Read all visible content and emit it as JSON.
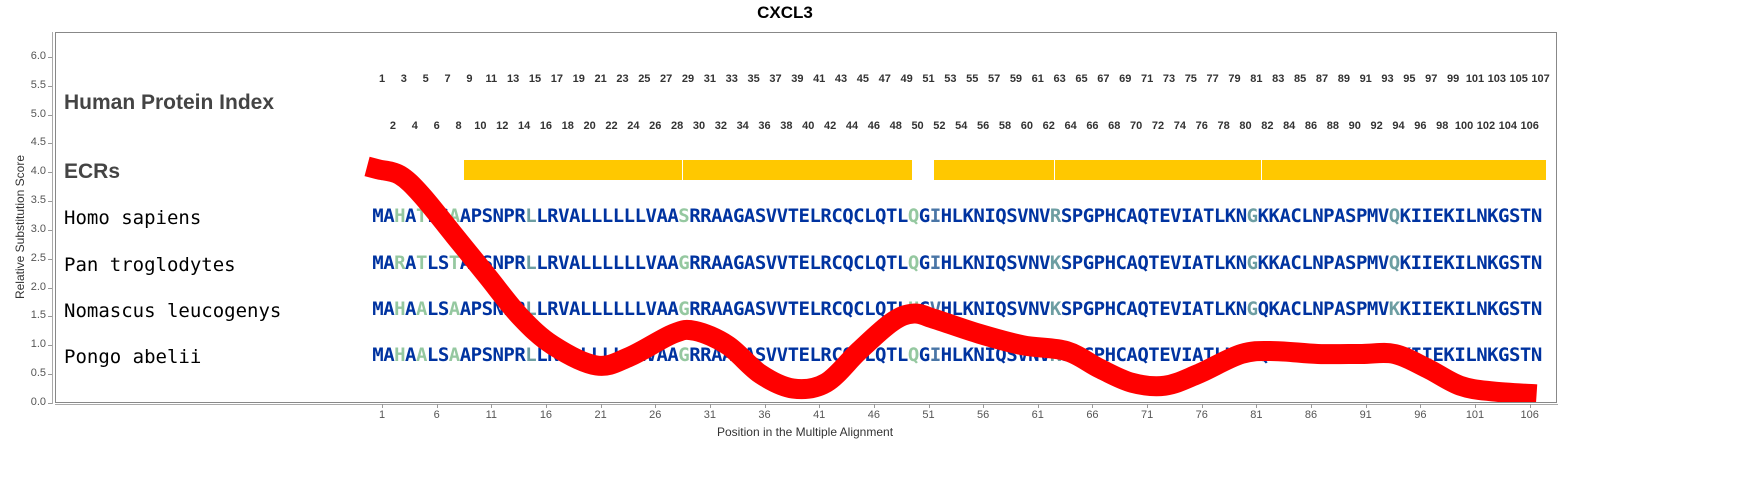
{
  "chart_data": {
    "type": "line",
    "title": "CXCL3",
    "xlabel": "Position in the Multiple Alignment",
    "ylabel": "Relative Substitution Score",
    "ylim": [
      0,
      6.0
    ],
    "xlim": [
      1,
      107
    ],
    "yticks": [
      "0.0",
      "0.5",
      "1.0",
      "1.5",
      "2.0",
      "2.5",
      "3.0",
      "3.5",
      "4.0",
      "4.5",
      "5.0",
      "5.5",
      "6.0"
    ],
    "xticks": [
      "1",
      "6",
      "11",
      "16",
      "21",
      "26",
      "31",
      "36",
      "41",
      "46",
      "51",
      "56",
      "61",
      "66",
      "71",
      "76",
      "81",
      "86",
      "91",
      "96",
      "101",
      "106"
    ],
    "series": [
      {
        "name": "Relative Substitution Score",
        "color": "#ff0000",
        "x": [
          0,
          1,
          3,
          5,
          8,
          11,
          14,
          17,
          21,
          24,
          28,
          30,
          33,
          36,
          39,
          42,
          45,
          48,
          50,
          52,
          56,
          60,
          64,
          67,
          70,
          73,
          76,
          80,
          83,
          87,
          91,
          94,
          97,
          100,
          103,
          107
        ],
        "y": [
          4.1,
          4.05,
          3.95,
          3.6,
          2.9,
          2.2,
          1.5,
          1.0,
          0.65,
          0.8,
          1.2,
          1.25,
          1.0,
          0.5,
          0.25,
          0.35,
          0.9,
          1.4,
          1.55,
          1.45,
          1.2,
          1.0,
          0.9,
          0.6,
          0.35,
          0.3,
          0.5,
          0.85,
          0.9,
          0.85,
          0.85,
          0.85,
          0.6,
          0.3,
          0.2,
          0.15
        ]
      }
    ],
    "grid": false
  },
  "labels": {
    "human_protein_index": "Human Protein Index",
    "ecrs": "ECRs"
  },
  "ecrs": {
    "color": "#ffc800",
    "ranges": [
      [
        9,
        28
      ],
      [
        29,
        49
      ],
      [
        52,
        62
      ],
      [
        63,
        81
      ],
      [
        82,
        93
      ],
      [
        94,
        107
      ]
    ]
  },
  "colors": {
    "conserved": "#0033a0",
    "light": "#95c8a0",
    "teal": "#6d9ea2",
    "steel": "#4a76a6"
  },
  "alignment": [
    {
      "species": "Homo sapiens",
      "sequence": "MAHATLSAAPSNPRLLRVALLLLLLVAASRRAAGASVVTELRCQCLQTLQGIHLKNIQSVNVRSPGPHCAQTEVIATLKNGKKACLNPASPMVQKIIEKILNKGSTN",
      "highlights": {
        "3": "light",
        "5": "light",
        "8": "light",
        "15": "teal",
        "29": "light",
        "50": "light",
        "52": "steel",
        "63": "teal",
        "81": "teal",
        "94": "teal"
      }
    },
    {
      "species": "Pan troglodytes",
      "sequence": "MARATLSTAPSNPRLLRVALLLLLLVAAGRRAAGASVVTELRCQCLQTLQGIHLKNIQSVNVKSPGPHCAQTEVIATLKNGKKACLNPASPMVQKIIEKILNKGSTN",
      "highlights": {
        "3": "light",
        "5": "light",
        "8": "light",
        "15": "teal",
        "29": "light",
        "50": "light",
        "52": "steel",
        "63": "teal",
        "81": "teal",
        "94": "teal"
      }
    },
    {
      "species": "Nomascus leucogenys",
      "sequence": "MAHAALSAAPSNPRLLRVALLLLLLVAAGRRAAGASVVTELRCQCLQTLHGVHLKNIQSVNVKSPGPHCAQTEVIATLKNGQKACLNPASPMVKKIIEKILNKGSTN",
      "highlights": {
        "3": "light",
        "5": "light",
        "8": "light",
        "15": "teal",
        "29": "light",
        "50": "light",
        "52": "steel",
        "63": "teal",
        "81": "teal",
        "94": "teal"
      }
    },
    {
      "species": "Pongo abelii",
      "sequence": "MAHAALSAAPSNPRLLRVALLLLLLVAAGRRAAGASVVTELRCQCLQTLQGIHLKNIQSVNVKSPGPHCAQTEVIATLKNGQKACLNPASPMVQKIIEKILNKGSTN",
      "highlights": {
        "3": "light",
        "5": "light",
        "8": "light",
        "15": "teal",
        "29": "light",
        "50": "light",
        "52": "steel",
        "63": "teal",
        "81": "teal",
        "94": "teal"
      }
    }
  ]
}
